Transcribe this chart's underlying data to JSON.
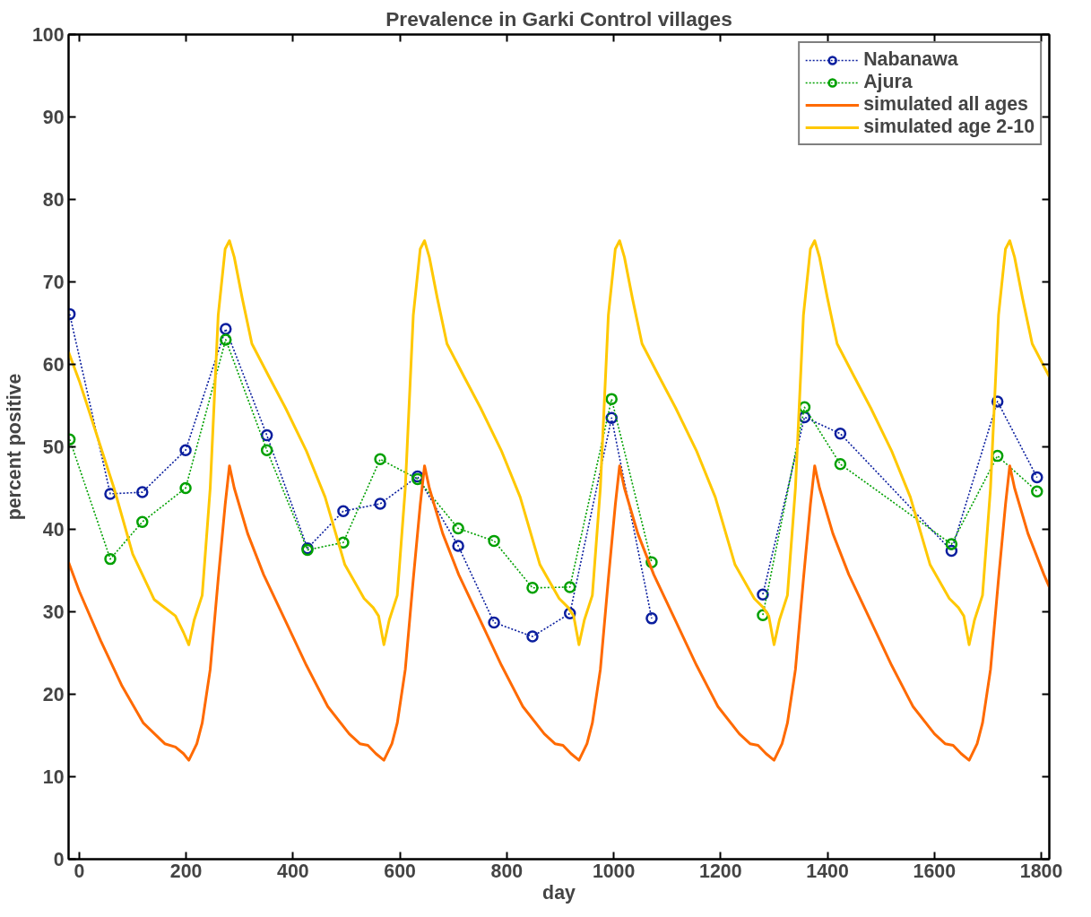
{
  "chart_data": {
    "type": "line",
    "title": "Prevalence in Garki Control villages",
    "xlabel": "day",
    "ylabel": "percent positive",
    "xlim": [
      -20,
      1815
    ],
    "ylim": [
      0,
      100
    ],
    "xticks": [
      0,
      200,
      400,
      600,
      800,
      1000,
      1200,
      1400,
      1600,
      1800
    ],
    "yticks": [
      0,
      10,
      20,
      30,
      40,
      50,
      60,
      70,
      80,
      90,
      100
    ],
    "grid": false,
    "legend": "top right",
    "series": [
      {
        "name": "Nabanawa",
        "color": "#0a1e9e",
        "marker": "circle",
        "line_style": "dotted",
        "x": [
          -18,
          58,
          118,
          199,
          274,
          351,
          427,
          494,
          563,
          633,
          709,
          776,
          848,
          918,
          996,
          1071,
          1175,
          1279,
          1357,
          1424,
          1632,
          1718,
          1792
        ],
        "values": [
          66.1,
          44.3,
          44.5,
          49.6,
          64.3,
          51.4,
          37.7,
          42.2,
          43.1,
          46.4,
          38.0,
          28.7,
          27.0,
          29.8,
          53.5,
          29.2,
          null,
          32.1,
          53.6,
          51.6,
          37.4,
          55.5,
          46.3
        ]
      },
      {
        "name": "Ajura",
        "color": "#00a000",
        "marker": "circle",
        "line_style": "dotted",
        "x": [
          -18,
          58,
          118,
          199,
          274,
          351,
          427,
          494,
          563,
          633,
          709,
          776,
          848,
          918,
          996,
          1071,
          1175,
          1279,
          1357,
          1424,
          1632,
          1718,
          1792
        ],
        "values": [
          50.9,
          36.4,
          40.9,
          45.0,
          63.0,
          49.6,
          37.5,
          38.4,
          48.5,
          46.1,
          40.1,
          38.6,
          32.9,
          33.0,
          55.8,
          36.0,
          null,
          29.6,
          54.8,
          47.9,
          38.2,
          48.9,
          44.6
        ]
      },
      {
        "name": "simulated all ages",
        "color": "#ff6a00",
        "marker": "none",
        "line_style": "solid",
        "x": [
          -20,
          0,
          40,
          80,
          120,
          160,
          180,
          195,
          205,
          220,
          230,
          245,
          260,
          273,
          281,
          290,
          315,
          345,
          385,
          425,
          465,
          505,
          525,
          540,
          555,
          570,
          585,
          595,
          610,
          625,
          638,
          646,
          655,
          680,
          710,
          750,
          790,
          830,
          870,
          890,
          905,
          920,
          935,
          950,
          960,
          975,
          990,
          1003,
          1011,
          1020,
          1045,
          1075,
          1115,
          1155,
          1195,
          1235,
          1255,
          1270,
          1285,
          1300,
          1315,
          1325,
          1340,
          1355,
          1368,
          1376,
          1385,
          1410,
          1440,
          1480,
          1520,
          1560,
          1600,
          1620,
          1635,
          1650,
          1665,
          1680,
          1690,
          1705,
          1720,
          1733,
          1741,
          1750,
          1775,
          1805,
          1815
        ],
        "values": [
          36,
          32.5,
          26.5,
          21,
          16.5,
          14,
          13.6,
          12.8,
          12,
          14,
          16.5,
          23,
          34,
          43,
          47.7,
          45,
          39.5,
          34.5,
          29,
          23.5,
          18.5,
          15.2,
          14,
          13.8,
          12.8,
          12,
          14,
          16.5,
          23,
          34,
          43,
          47.7,
          45,
          39.5,
          34.5,
          29,
          23.5,
          18.5,
          15.2,
          14,
          13.8,
          12.8,
          12,
          14,
          16.5,
          23,
          34,
          43,
          47.7,
          45,
          39.5,
          34.5,
          29,
          23.5,
          18.5,
          15.2,
          14,
          13.8,
          12.8,
          12,
          14,
          16.5,
          23,
          34,
          43,
          47.7,
          45,
          39.5,
          34.5,
          29,
          23.5,
          18.5,
          15.2,
          14,
          13.8,
          12.8,
          12,
          14,
          16.5,
          23,
          34,
          43,
          47.7,
          45,
          39.5,
          34.5,
          33
        ]
      },
      {
        "name": "simulated age 2-10",
        "color": "#ffc800",
        "marker": "none",
        "line_style": "solid",
        "x": [
          -20,
          0,
          40,
          65,
          100,
          140,
          180,
          195,
          205,
          215,
          230,
          245,
          260,
          273,
          281,
          290,
          305,
          323,
          355,
          386,
          425,
          460,
          497,
          533,
          550,
          560,
          570,
          580,
          595,
          610,
          625,
          638,
          646,
          655,
          670,
          688,
          720,
          751,
          790,
          825,
          862,
          898,
          915,
          925,
          935,
          945,
          960,
          975,
          990,
          1003,
          1011,
          1020,
          1035,
          1053,
          1085,
          1116,
          1155,
          1190,
          1227,
          1263,
          1280,
          1290,
          1300,
          1310,
          1325,
          1340,
          1355,
          1368,
          1376,
          1385,
          1400,
          1418,
          1450,
          1481,
          1520,
          1555,
          1592,
          1628,
          1645,
          1655,
          1665,
          1675,
          1690,
          1705,
          1720,
          1733,
          1741,
          1750,
          1765,
          1783,
          1815
        ],
        "values": [
          61.5,
          58,
          50,
          45,
          37,
          31.5,
          29.5,
          27.5,
          26,
          29,
          32,
          45,
          66,
          74,
          75,
          73,
          68,
          62.5,
          58.5,
          54.7,
          49.5,
          43.9,
          35.7,
          31.6,
          30.5,
          29.5,
          26,
          29,
          32,
          45,
          66,
          74,
          75,
          73,
          68,
          62.5,
          58.5,
          54.7,
          49.5,
          43.9,
          35.7,
          31.6,
          30.5,
          29.5,
          26,
          29,
          32,
          45,
          66,
          74,
          75,
          73,
          68,
          62.5,
          58.5,
          54.7,
          49.5,
          43.9,
          35.7,
          31.6,
          30.5,
          29.5,
          26,
          29,
          32,
          45,
          66,
          74,
          75,
          73,
          68,
          62.5,
          58.5,
          54.7,
          49.5,
          43.9,
          35.7,
          31.6,
          30.5,
          29.5,
          26,
          29,
          32,
          45,
          66,
          74,
          75,
          73,
          68,
          62.5,
          58.5
        ]
      }
    ]
  }
}
